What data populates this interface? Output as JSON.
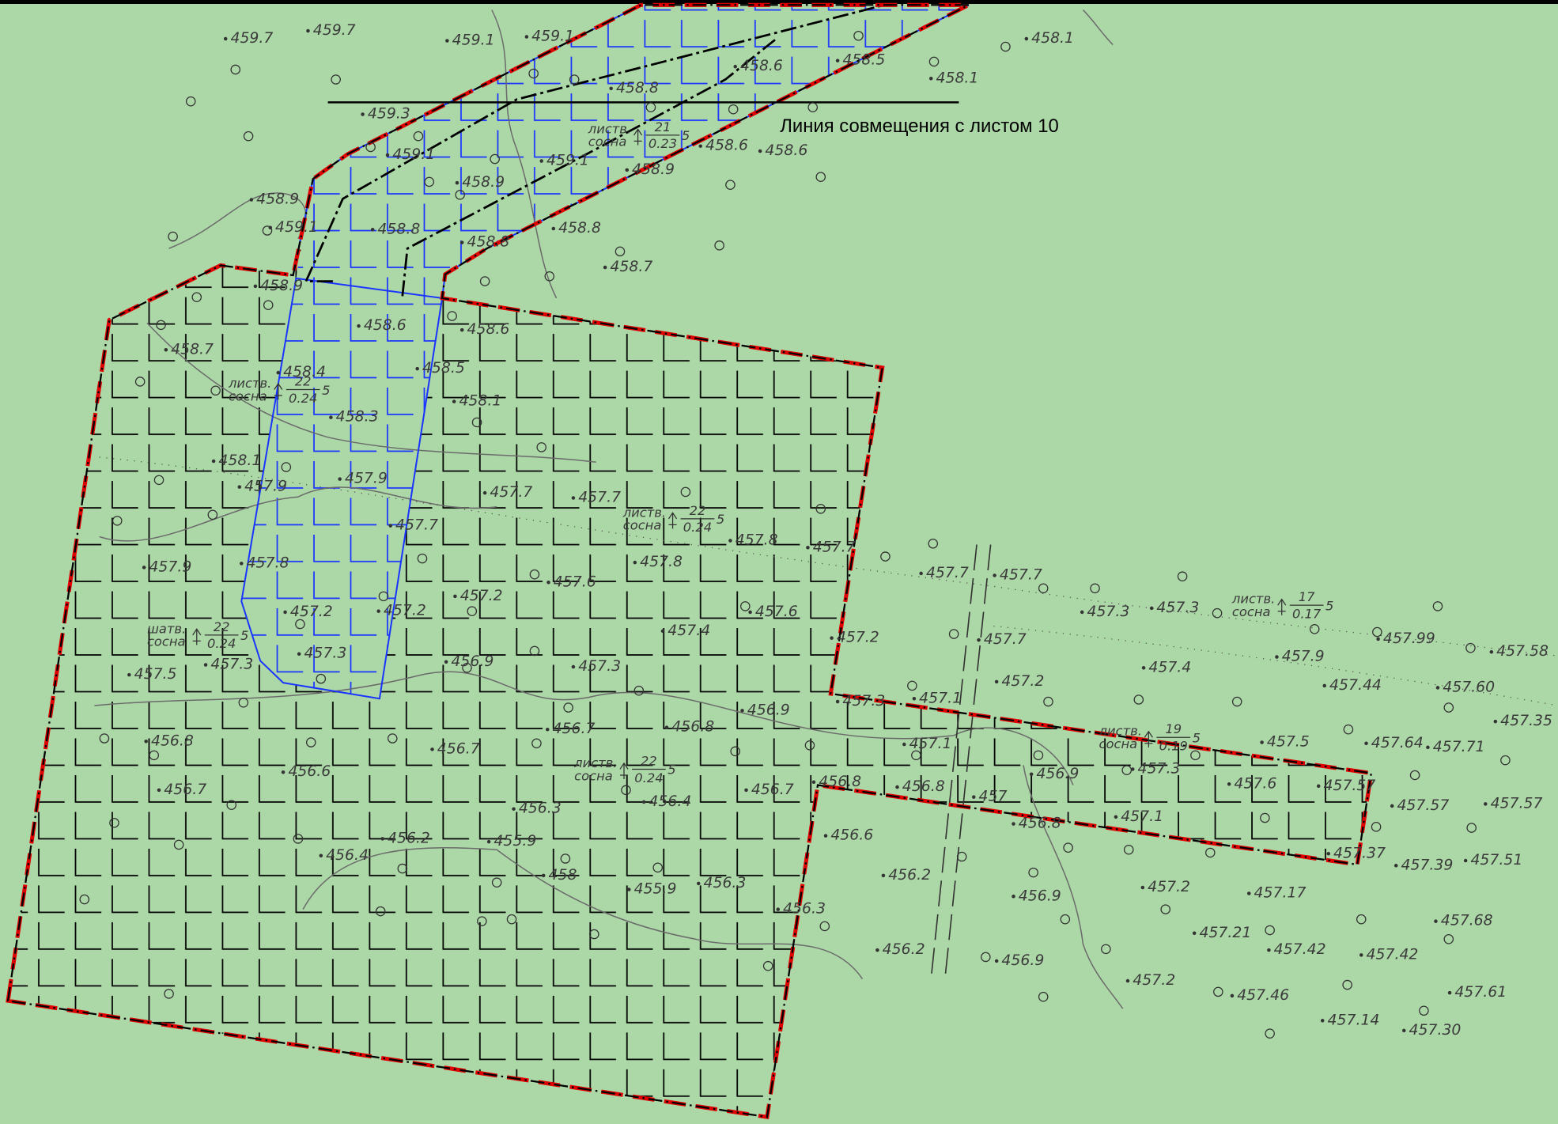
{
  "annotation": "Линия совмещения с листом 10",
  "labels": [
    "459.7",
    "459.7",
    "459.1",
    "459.1",
    "458.1",
    "458.1",
    "458.5",
    "458.6",
    "458.8",
    "459.3",
    "458.6",
    "458.6",
    "458.9",
    "459.1",
    "459.1",
    "458.9",
    "458.9",
    "459.1",
    "458.8",
    "458.8",
    "458.8",
    "458.7",
    "458.9",
    "458.6",
    "458.6",
    "458.7",
    "458.5",
    "458.4",
    "458.1",
    "458.3",
    "458.1",
    "457.9",
    "457.9",
    "457.7",
    "457.7",
    "457.7",
    "457.8",
    "457.7",
    "457.8",
    "457.8",
    "457.9",
    "457.6",
    "457.7",
    "457.7",
    "457.2",
    "457.6",
    "457.3",
    "457.3",
    "457.2",
    "457.2",
    "457.4",
    "457.2",
    "457.7",
    "457.3",
    "457.3",
    "457.5",
    "456.9",
    "457.3",
    "457.9",
    "457.99",
    "457.58",
    "457.4",
    "457.2",
    "457.44",
    "457.60",
    "457.1",
    "457.3",
    "456.9",
    "456.7",
    "456.8",
    "457.35",
    "456.8",
    "456.7",
    "457.5",
    "457.64",
    "457.71",
    "457.3",
    "456.6",
    "457.1",
    "456.8",
    "457",
    "456.9",
    "457.6",
    "457.57",
    "456.7",
    "456.4",
    "456.7",
    "456.8",
    "457.57",
    "457.57",
    "456.8",
    "457.1",
    "456.3",
    "456.6",
    "456.2",
    "455.9",
    "457.37",
    "457.39",
    "457.51",
    "456.4",
    "456.2",
    "457.2",
    "457.17",
    "456.3",
    "455.9",
    "456.3",
    "456.9",
    "457.68",
    "457.21",
    "457.42",
    "457.42",
    "456.2",
    "456.9",
    "457.2",
    "457.46",
    "457.61",
    "457.14",
    "457.30",
    "458"
  ],
  "trees": [
    {
      "kind": "листв.",
      "species": "сосна",
      "height": "22",
      "diameter": "0.24",
      "count": "5"
    },
    {
      "kind": "листв.",
      "species": "сосна",
      "height": "22",
      "diameter": "0.24",
      "count": "5"
    },
    {
      "kind": "листв.",
      "species": "сосна",
      "height": "17",
      "diameter": "0.17",
      "count": "5"
    },
    {
      "kind": "шатв.",
      "species": "сосна",
      "height": "22",
      "diameter": "0.24",
      "count": "5"
    },
    {
      "kind": "листв.",
      "species": "сосна",
      "height": "22",
      "diameter": "0.24",
      "count": "5"
    },
    {
      "kind": "листв.",
      "species": "сосна",
      "height": "19",
      "diameter": "0.19",
      "count": "5"
    },
    {
      "kind": "листв.",
      "species": "сосна",
      "height": "21",
      "diameter": "0.23",
      "count": "5"
    }
  ]
}
